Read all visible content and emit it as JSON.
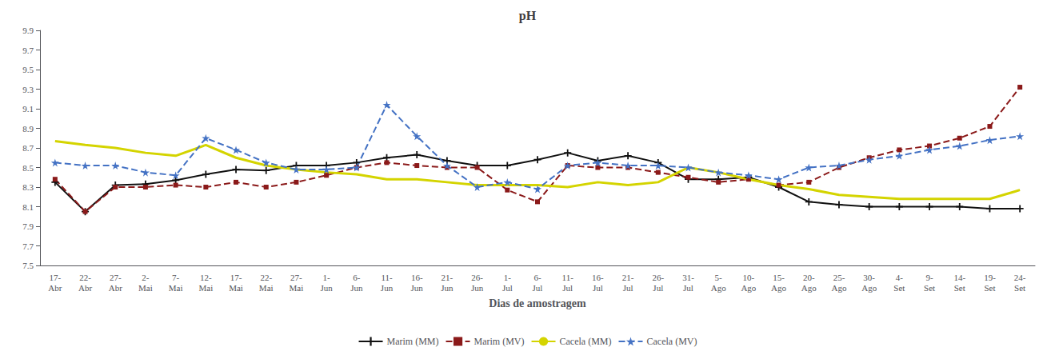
{
  "chart_data": {
    "type": "line",
    "title": "pH",
    "xlabel": "Dias de amostragem",
    "categories": [
      "17-\nAbr",
      "22-\nAbr",
      "27-\nAbr",
      "2-\nMai",
      "7-\nMai",
      "12-\nMai",
      "17-\nMai",
      "22-\nMai",
      "27-\nMai",
      "1-\nJun",
      "6-\nJun",
      "11-\nJun",
      "16-\nJun",
      "21-\nJun",
      "26-\nJun",
      "1-\nJul",
      "6-\nJul",
      "11-\nJul",
      "16-\nJul",
      "21-\nJul",
      "26-\nJul",
      "31-\nJul",
      "5-\nAgo",
      "10-\nAgo",
      "15-\nAgo",
      "20-\nAgo",
      "25-\nAgo",
      "30-\nAgo",
      "4-\nSet",
      "9-\nSet",
      "14-\nSet",
      "19-\nSet",
      "24-\nSet"
    ],
    "ylim": [
      7.5,
      9.9
    ],
    "yticks": [
      7.5,
      7.7,
      7.9,
      8.1,
      8.3,
      8.5,
      8.7,
      8.9,
      9.1,
      9.3,
      9.5,
      9.7,
      9.9
    ],
    "grid": false,
    "legend": "bottom",
    "series": [
      {
        "name": "Marim (MM)",
        "color": "#111111",
        "marker": "plus",
        "line_style": "solid",
        "values": [
          8.35,
          8.05,
          8.32,
          8.33,
          8.37,
          8.43,
          8.48,
          8.47,
          8.52,
          8.52,
          8.55,
          8.6,
          8.63,
          8.57,
          8.52,
          8.52,
          8.58,
          8.65,
          8.57,
          8.62,
          8.55,
          8.38,
          8.38,
          8.4,
          8.3,
          8.15,
          8.12,
          8.1,
          8.1,
          8.1,
          8.1,
          8.08,
          8.08
        ]
      },
      {
        "name": "Marim (MV)",
        "color": "#8b1a1a",
        "marker": "square",
        "line_style": "dashed",
        "values": [
          8.38,
          8.05,
          8.3,
          8.3,
          8.32,
          8.3,
          8.35,
          8.3,
          8.35,
          8.42,
          8.5,
          8.55,
          8.52,
          8.5,
          8.5,
          8.27,
          8.15,
          8.52,
          8.5,
          8.5,
          8.45,
          8.4,
          8.35,
          8.38,
          8.32,
          8.35,
          8.5,
          8.6,
          8.68,
          8.72,
          8.8,
          8.92,
          9.32
        ]
      },
      {
        "name": "Cacela (MM)",
        "color": "#d4d400",
        "marker": "none",
        "line_style": "solid",
        "values": [
          8.77,
          8.73,
          8.7,
          8.65,
          8.62,
          8.73,
          8.6,
          8.52,
          8.48,
          8.45,
          8.43,
          8.38,
          8.38,
          8.35,
          8.32,
          8.32,
          8.32,
          8.3,
          8.35,
          8.32,
          8.35,
          8.5,
          8.45,
          8.38,
          8.32,
          8.28,
          8.22,
          8.2,
          8.18,
          8.18,
          8.18,
          8.18,
          8.27
        ]
      },
      {
        "name": "Cacela (MV)",
        "color": "#4472c4",
        "marker": "star",
        "line_style": "dashed",
        "values": [
          8.55,
          8.52,
          8.52,
          8.45,
          8.42,
          8.8,
          8.68,
          8.55,
          8.48,
          8.48,
          8.5,
          9.14,
          8.82,
          8.52,
          8.3,
          8.35,
          8.28,
          8.52,
          8.55,
          8.52,
          8.52,
          8.5,
          8.45,
          8.42,
          8.38,
          8.5,
          8.52,
          8.58,
          8.62,
          8.68,
          8.72,
          8.78,
          8.82
        ]
      }
    ]
  }
}
